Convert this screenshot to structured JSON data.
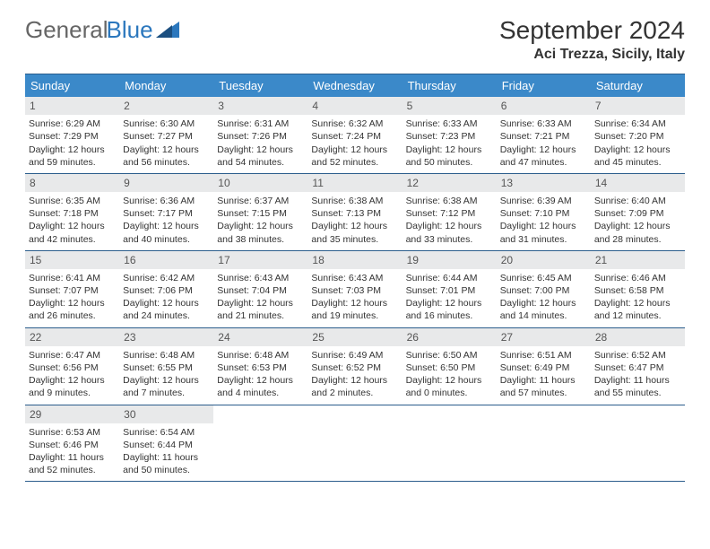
{
  "logo": {
    "text1": "General",
    "text2": "Blue"
  },
  "title": "September 2024",
  "location": "Aci Trezza, Sicily, Italy",
  "colors": {
    "header_bg": "#3b89c9",
    "header_border": "#2b5d8c",
    "daynum_bg": "#e8e9ea",
    "logo_accent": "#2b77bd"
  },
  "weekdays": [
    "Sunday",
    "Monday",
    "Tuesday",
    "Wednesday",
    "Thursday",
    "Friday",
    "Saturday"
  ],
  "weeks": [
    [
      {
        "n": "1",
        "sr": "Sunrise: 6:29 AM",
        "ss": "Sunset: 7:29 PM",
        "dl": "Daylight: 12 hours and 59 minutes."
      },
      {
        "n": "2",
        "sr": "Sunrise: 6:30 AM",
        "ss": "Sunset: 7:27 PM",
        "dl": "Daylight: 12 hours and 56 minutes."
      },
      {
        "n": "3",
        "sr": "Sunrise: 6:31 AM",
        "ss": "Sunset: 7:26 PM",
        "dl": "Daylight: 12 hours and 54 minutes."
      },
      {
        "n": "4",
        "sr": "Sunrise: 6:32 AM",
        "ss": "Sunset: 7:24 PM",
        "dl": "Daylight: 12 hours and 52 minutes."
      },
      {
        "n": "5",
        "sr": "Sunrise: 6:33 AM",
        "ss": "Sunset: 7:23 PM",
        "dl": "Daylight: 12 hours and 50 minutes."
      },
      {
        "n": "6",
        "sr": "Sunrise: 6:33 AM",
        "ss": "Sunset: 7:21 PM",
        "dl": "Daylight: 12 hours and 47 minutes."
      },
      {
        "n": "7",
        "sr": "Sunrise: 6:34 AM",
        "ss": "Sunset: 7:20 PM",
        "dl": "Daylight: 12 hours and 45 minutes."
      }
    ],
    [
      {
        "n": "8",
        "sr": "Sunrise: 6:35 AM",
        "ss": "Sunset: 7:18 PM",
        "dl": "Daylight: 12 hours and 42 minutes."
      },
      {
        "n": "9",
        "sr": "Sunrise: 6:36 AM",
        "ss": "Sunset: 7:17 PM",
        "dl": "Daylight: 12 hours and 40 minutes."
      },
      {
        "n": "10",
        "sr": "Sunrise: 6:37 AM",
        "ss": "Sunset: 7:15 PM",
        "dl": "Daylight: 12 hours and 38 minutes."
      },
      {
        "n": "11",
        "sr": "Sunrise: 6:38 AM",
        "ss": "Sunset: 7:13 PM",
        "dl": "Daylight: 12 hours and 35 minutes."
      },
      {
        "n": "12",
        "sr": "Sunrise: 6:38 AM",
        "ss": "Sunset: 7:12 PM",
        "dl": "Daylight: 12 hours and 33 minutes."
      },
      {
        "n": "13",
        "sr": "Sunrise: 6:39 AM",
        "ss": "Sunset: 7:10 PM",
        "dl": "Daylight: 12 hours and 31 minutes."
      },
      {
        "n": "14",
        "sr": "Sunrise: 6:40 AM",
        "ss": "Sunset: 7:09 PM",
        "dl": "Daylight: 12 hours and 28 minutes."
      }
    ],
    [
      {
        "n": "15",
        "sr": "Sunrise: 6:41 AM",
        "ss": "Sunset: 7:07 PM",
        "dl": "Daylight: 12 hours and 26 minutes."
      },
      {
        "n": "16",
        "sr": "Sunrise: 6:42 AM",
        "ss": "Sunset: 7:06 PM",
        "dl": "Daylight: 12 hours and 24 minutes."
      },
      {
        "n": "17",
        "sr": "Sunrise: 6:43 AM",
        "ss": "Sunset: 7:04 PM",
        "dl": "Daylight: 12 hours and 21 minutes."
      },
      {
        "n": "18",
        "sr": "Sunrise: 6:43 AM",
        "ss": "Sunset: 7:03 PM",
        "dl": "Daylight: 12 hours and 19 minutes."
      },
      {
        "n": "19",
        "sr": "Sunrise: 6:44 AM",
        "ss": "Sunset: 7:01 PM",
        "dl": "Daylight: 12 hours and 16 minutes."
      },
      {
        "n": "20",
        "sr": "Sunrise: 6:45 AM",
        "ss": "Sunset: 7:00 PM",
        "dl": "Daylight: 12 hours and 14 minutes."
      },
      {
        "n": "21",
        "sr": "Sunrise: 6:46 AM",
        "ss": "Sunset: 6:58 PM",
        "dl": "Daylight: 12 hours and 12 minutes."
      }
    ],
    [
      {
        "n": "22",
        "sr": "Sunrise: 6:47 AM",
        "ss": "Sunset: 6:56 PM",
        "dl": "Daylight: 12 hours and 9 minutes."
      },
      {
        "n": "23",
        "sr": "Sunrise: 6:48 AM",
        "ss": "Sunset: 6:55 PM",
        "dl": "Daylight: 12 hours and 7 minutes."
      },
      {
        "n": "24",
        "sr": "Sunrise: 6:48 AM",
        "ss": "Sunset: 6:53 PM",
        "dl": "Daylight: 12 hours and 4 minutes."
      },
      {
        "n": "25",
        "sr": "Sunrise: 6:49 AM",
        "ss": "Sunset: 6:52 PM",
        "dl": "Daylight: 12 hours and 2 minutes."
      },
      {
        "n": "26",
        "sr": "Sunrise: 6:50 AM",
        "ss": "Sunset: 6:50 PM",
        "dl": "Daylight: 12 hours and 0 minutes."
      },
      {
        "n": "27",
        "sr": "Sunrise: 6:51 AM",
        "ss": "Sunset: 6:49 PM",
        "dl": "Daylight: 11 hours and 57 minutes."
      },
      {
        "n": "28",
        "sr": "Sunrise: 6:52 AM",
        "ss": "Sunset: 6:47 PM",
        "dl": "Daylight: 11 hours and 55 minutes."
      }
    ],
    [
      {
        "n": "29",
        "sr": "Sunrise: 6:53 AM",
        "ss": "Sunset: 6:46 PM",
        "dl": "Daylight: 11 hours and 52 minutes."
      },
      {
        "n": "30",
        "sr": "Sunrise: 6:54 AM",
        "ss": "Sunset: 6:44 PM",
        "dl": "Daylight: 11 hours and 50 minutes."
      },
      {
        "empty": true
      },
      {
        "empty": true
      },
      {
        "empty": true
      },
      {
        "empty": true
      },
      {
        "empty": true
      }
    ]
  ]
}
